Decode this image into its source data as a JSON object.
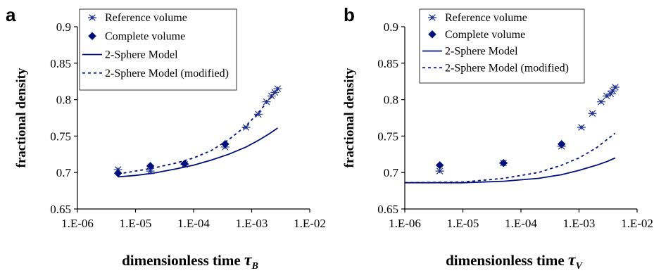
{
  "chart_data": [
    {
      "panel_label": "a",
      "type": "scatter",
      "xlabel": "dimensionless time",
      "xlabel_symbol": "τ",
      "xlabel_subscript": "B",
      "ylabel": "fractional density",
      "x_scale": "log",
      "xlim": [
        1e-06,
        0.01
      ],
      "ylim": [
        0.65,
        0.9
      ],
      "x_ticks": [
        "1.E-06",
        "1.E-05",
        "1.E-04",
        "1.E-03",
        "1.E-02"
      ],
      "y_ticks": [
        "0.65",
        "0.7",
        "0.75",
        "0.8",
        "0.85",
        "0.9"
      ],
      "legend_position": "top-right",
      "grid": false,
      "series": [
        {
          "name": "Reference volume",
          "kind": "marker-asterisk",
          "color": "#1f2f8a",
          "points": [
            [
              5e-06,
              0.704
            ],
            [
              1.8e-05,
              0.702
            ],
            [
              7e-05,
              0.711
            ],
            [
              0.00035,
              0.735
            ],
            [
              0.0008,
              0.762
            ],
            [
              0.0013,
              0.78
            ],
            [
              0.0018,
              0.797
            ],
            [
              0.0022,
              0.805
            ],
            [
              0.0025,
              0.81
            ],
            [
              0.0028,
              0.815
            ]
          ]
        },
        {
          "name": "Complete volume",
          "kind": "marker-diamond",
          "color": "#00107a",
          "points": [
            [
              5e-06,
              0.699
            ],
            [
              1.8e-05,
              0.709
            ],
            [
              7e-05,
              0.712
            ],
            [
              0.00035,
              0.739
            ]
          ]
        },
        {
          "name": "2-Sphere Model",
          "kind": "line-solid",
          "color": "#00107a",
          "points": [
            [
              5e-06,
              0.694
            ],
            [
              1e-05,
              0.696
            ],
            [
              2e-05,
              0.699
            ],
            [
              5e-05,
              0.705
            ],
            [
              0.0001,
              0.71
            ],
            [
              0.0002,
              0.717
            ],
            [
              0.0004,
              0.725
            ],
            [
              0.0008,
              0.735
            ],
            [
              0.0013,
              0.744
            ],
            [
              0.002,
              0.753
            ],
            [
              0.0028,
              0.761
            ]
          ]
        },
        {
          "name": "2-Sphere Model (modified)",
          "kind": "line-dotted",
          "color": "#00107a",
          "points": [
            [
              5e-06,
              0.698
            ],
            [
              1e-05,
              0.702
            ],
            [
              2e-05,
              0.706
            ],
            [
              5e-05,
              0.713
            ],
            [
              0.0001,
              0.72
            ],
            [
              0.0002,
              0.73
            ],
            [
              0.0004,
              0.745
            ],
            [
              0.0008,
              0.764
            ],
            [
              0.0013,
              0.782
            ],
            [
              0.002,
              0.8
            ],
            [
              0.0028,
              0.815
            ]
          ]
        }
      ]
    },
    {
      "panel_label": "b",
      "type": "scatter",
      "xlabel": "dimensionless time",
      "xlabel_symbol": "τ",
      "xlabel_subscript": "V",
      "ylabel": "fractional density",
      "x_scale": "log",
      "xlim": [
        1e-06,
        0.01
      ],
      "ylim": [
        0.65,
        0.9
      ],
      "x_ticks": [
        "1.E-06",
        "1.E-05",
        "1.E-04",
        "1.E-03",
        "1.E-02"
      ],
      "y_ticks": [
        "0.65",
        "0.7",
        "0.75",
        "0.8",
        "0.85",
        "0.9"
      ],
      "legend_position": "top-right",
      "grid": false,
      "series": [
        {
          "name": "Reference volume",
          "kind": "marker-asterisk",
          "color": "#1f2f8a",
          "points": [
            [
              4e-06,
              0.702
            ],
            [
              5e-05,
              0.713
            ],
            [
              0.0005,
              0.736
            ],
            [
              0.0011,
              0.762
            ],
            [
              0.0017,
              0.781
            ],
            [
              0.0024,
              0.797
            ],
            [
              0.003,
              0.805
            ],
            [
              0.0035,
              0.808
            ],
            [
              0.0038,
              0.812
            ],
            [
              0.0042,
              0.817
            ]
          ]
        },
        {
          "name": "Complete volume",
          "kind": "marker-diamond",
          "color": "#00107a",
          "points": [
            [
              4e-06,
              0.71
            ],
            [
              5e-05,
              0.713
            ],
            [
              0.0005,
              0.739
            ]
          ]
        },
        {
          "name": "2-Sphere Model",
          "kind": "line-solid",
          "color": "#00107a",
          "points": [
            [
              1e-06,
              0.686
            ],
            [
              1e-05,
              0.686
            ],
            [
              5e-05,
              0.688
            ],
            [
              0.0002,
              0.692
            ],
            [
              0.0005,
              0.697
            ],
            [
              0.001,
              0.703
            ],
            [
              0.002,
              0.71
            ],
            [
              0.003,
              0.715
            ],
            [
              0.0042,
              0.72
            ]
          ]
        },
        {
          "name": "2-Sphere Model (modified)",
          "kind": "line-dotted",
          "color": "#00107a",
          "points": [
            [
              1e-06,
              0.686
            ],
            [
              1e-05,
              0.687
            ],
            [
              5e-05,
              0.692
            ],
            [
              0.0002,
              0.7
            ],
            [
              0.0005,
              0.71
            ],
            [
              0.001,
              0.72
            ],
            [
              0.002,
              0.734
            ],
            [
              0.003,
              0.745
            ],
            [
              0.0042,
              0.754
            ]
          ]
        }
      ]
    }
  ]
}
